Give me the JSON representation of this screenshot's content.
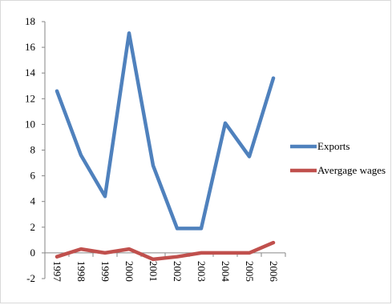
{
  "chart_data": {
    "type": "line",
    "title": "",
    "xlabel": "",
    "ylabel": "",
    "categories": [
      "1997",
      "1998",
      "1999",
      "2000",
      "2001",
      "2002",
      "2003",
      "2004",
      "2005",
      "2006"
    ],
    "ylim": [
      -2,
      18
    ],
    "yticks": [
      "-2",
      "0",
      "2",
      "4",
      "6",
      "8",
      "10",
      "12",
      "14",
      "16",
      "18"
    ],
    "grid": false,
    "legend_position": "right",
    "series": [
      {
        "name": "Exports",
        "color": "#4f81bd",
        "values": [
          12.6,
          7.6,
          4.4,
          17.1,
          6.8,
          1.9,
          1.9,
          10.1,
          7.5,
          13.6
        ]
      },
      {
        "name": "Avergage wages",
        "color": "#c0504d",
        "values": [
          -0.3,
          0.3,
          0.0,
          0.3,
          -0.5,
          -0.3,
          0.0,
          0.0,
          0.0,
          0.8
        ]
      }
    ]
  }
}
